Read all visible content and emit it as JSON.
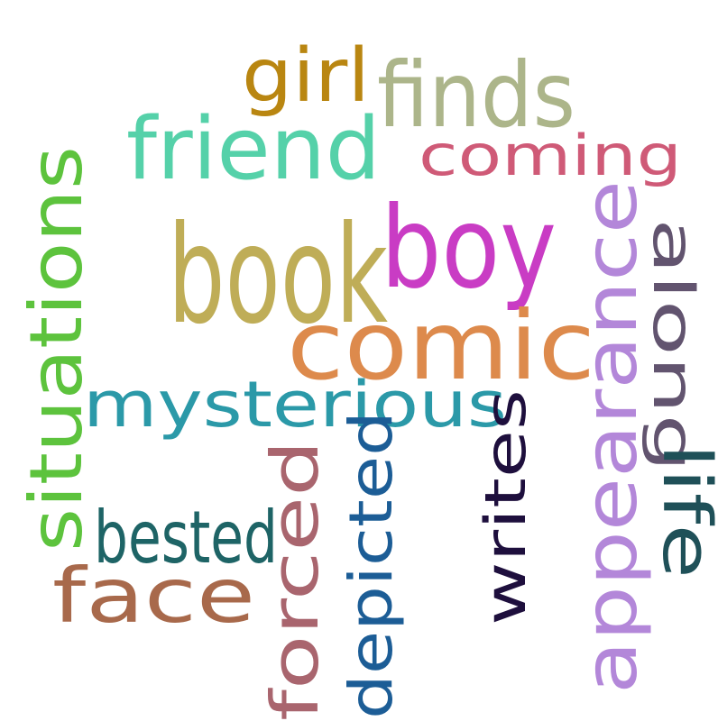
{
  "words": [
    {
      "key": "book",
      "text": "book",
      "color": "#bfad57"
    },
    {
      "key": "boy",
      "text": "boy",
      "color": "#c93cc4"
    },
    {
      "key": "comic",
      "text": "comic",
      "color": "#dd8a4c"
    },
    {
      "key": "mysterious",
      "text": "mysterious",
      "color": "#2b99a8"
    },
    {
      "key": "friend",
      "text": "friend",
      "color": "#55d1a9"
    },
    {
      "key": "coming",
      "text": "coming",
      "color": "#cf5a77"
    },
    {
      "key": "finds",
      "text": "finds",
      "color": "#acb58a"
    },
    {
      "key": "girl",
      "text": "girl",
      "color": "#b98611"
    },
    {
      "key": "situations",
      "text": "situations",
      "color": "#5dc33d"
    },
    {
      "key": "appearance",
      "text": "appearance",
      "color": "#b387d9"
    },
    {
      "key": "along",
      "text": "along",
      "color": "#62546f"
    },
    {
      "key": "writes",
      "text": "writes",
      "color": "#1e0f3d"
    },
    {
      "key": "depicted",
      "text": "depicted",
      "color": "#1c5d96"
    },
    {
      "key": "forced",
      "text": "forced",
      "color": "#a9656e"
    },
    {
      "key": "bested",
      "text": "bested",
      "color": "#1e6466"
    },
    {
      "key": "face",
      "text": "face",
      "color": "#a8694b"
    },
    {
      "key": "life",
      "text": "life",
      "color": "#1f5058"
    }
  ]
}
